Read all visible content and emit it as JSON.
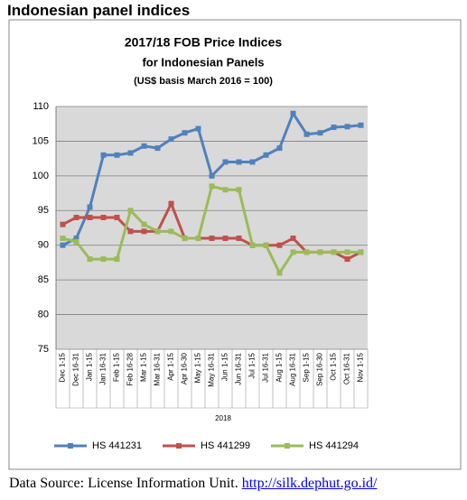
{
  "header": {
    "title": "Indonesian panel indices"
  },
  "chart_data": {
    "type": "line",
    "title": "2017/18 FOB Price Indices",
    "subtitle": "for Indonesian Panels",
    "note": "(US$ basis March 2016 = 100)",
    "xlabel": "2018",
    "categories": [
      "Dec 1-15",
      "Dec 16-31",
      "Jan 1-15",
      "Jan 16-31",
      "Feb 1-15",
      "Feb 16-28",
      "Mar 1-15",
      "Mar 16-31",
      "Apr 1-15",
      "Apr 16-30",
      "May 1-15",
      "May 16-31",
      "Jun 1-15",
      "Jun 16-31",
      "Jul 1-15",
      "Jul 16-31",
      "Aug 1-15",
      "Aug 16-31",
      "Sep 1-15",
      "Sep 16-30",
      "Oct 1-15",
      "Oct 16-31",
      "Nov 1-15"
    ],
    "series": [
      {
        "name": "HS 441231",
        "color": "#4f81bd",
        "values": [
          90,
          91,
          95.5,
          103,
          103,
          103.3,
          104.3,
          104,
          105.3,
          106.2,
          106.8,
          100,
          102,
          102,
          102,
          103,
          104,
          109,
          106,
          106.2,
          107,
          107.1,
          107.3
        ]
      },
      {
        "name": "HS 441299",
        "color": "#c0504d",
        "values": [
          93,
          94,
          94,
          94,
          94,
          92,
          92,
          92,
          96,
          91,
          91,
          91,
          91,
          91,
          90,
          90,
          90,
          91,
          89,
          89,
          89,
          88,
          89
        ]
      },
      {
        "name": "HS 441294",
        "color": "#9bbb59",
        "values": [
          91,
          90.5,
          88,
          88,
          88,
          95,
          93,
          92,
          92,
          91,
          91,
          98.5,
          98,
          98,
          90,
          90,
          86,
          89,
          89,
          89,
          89,
          89,
          89
        ]
      }
    ],
    "ylim": [
      75,
      110
    ],
    "yticks": [
      75,
      80,
      85,
      90,
      95,
      100,
      105,
      110
    ],
    "grid": true
  },
  "footer": {
    "text": "Data Source: License Information Unit.",
    "link": "http://silk.dephut.go.id/"
  }
}
